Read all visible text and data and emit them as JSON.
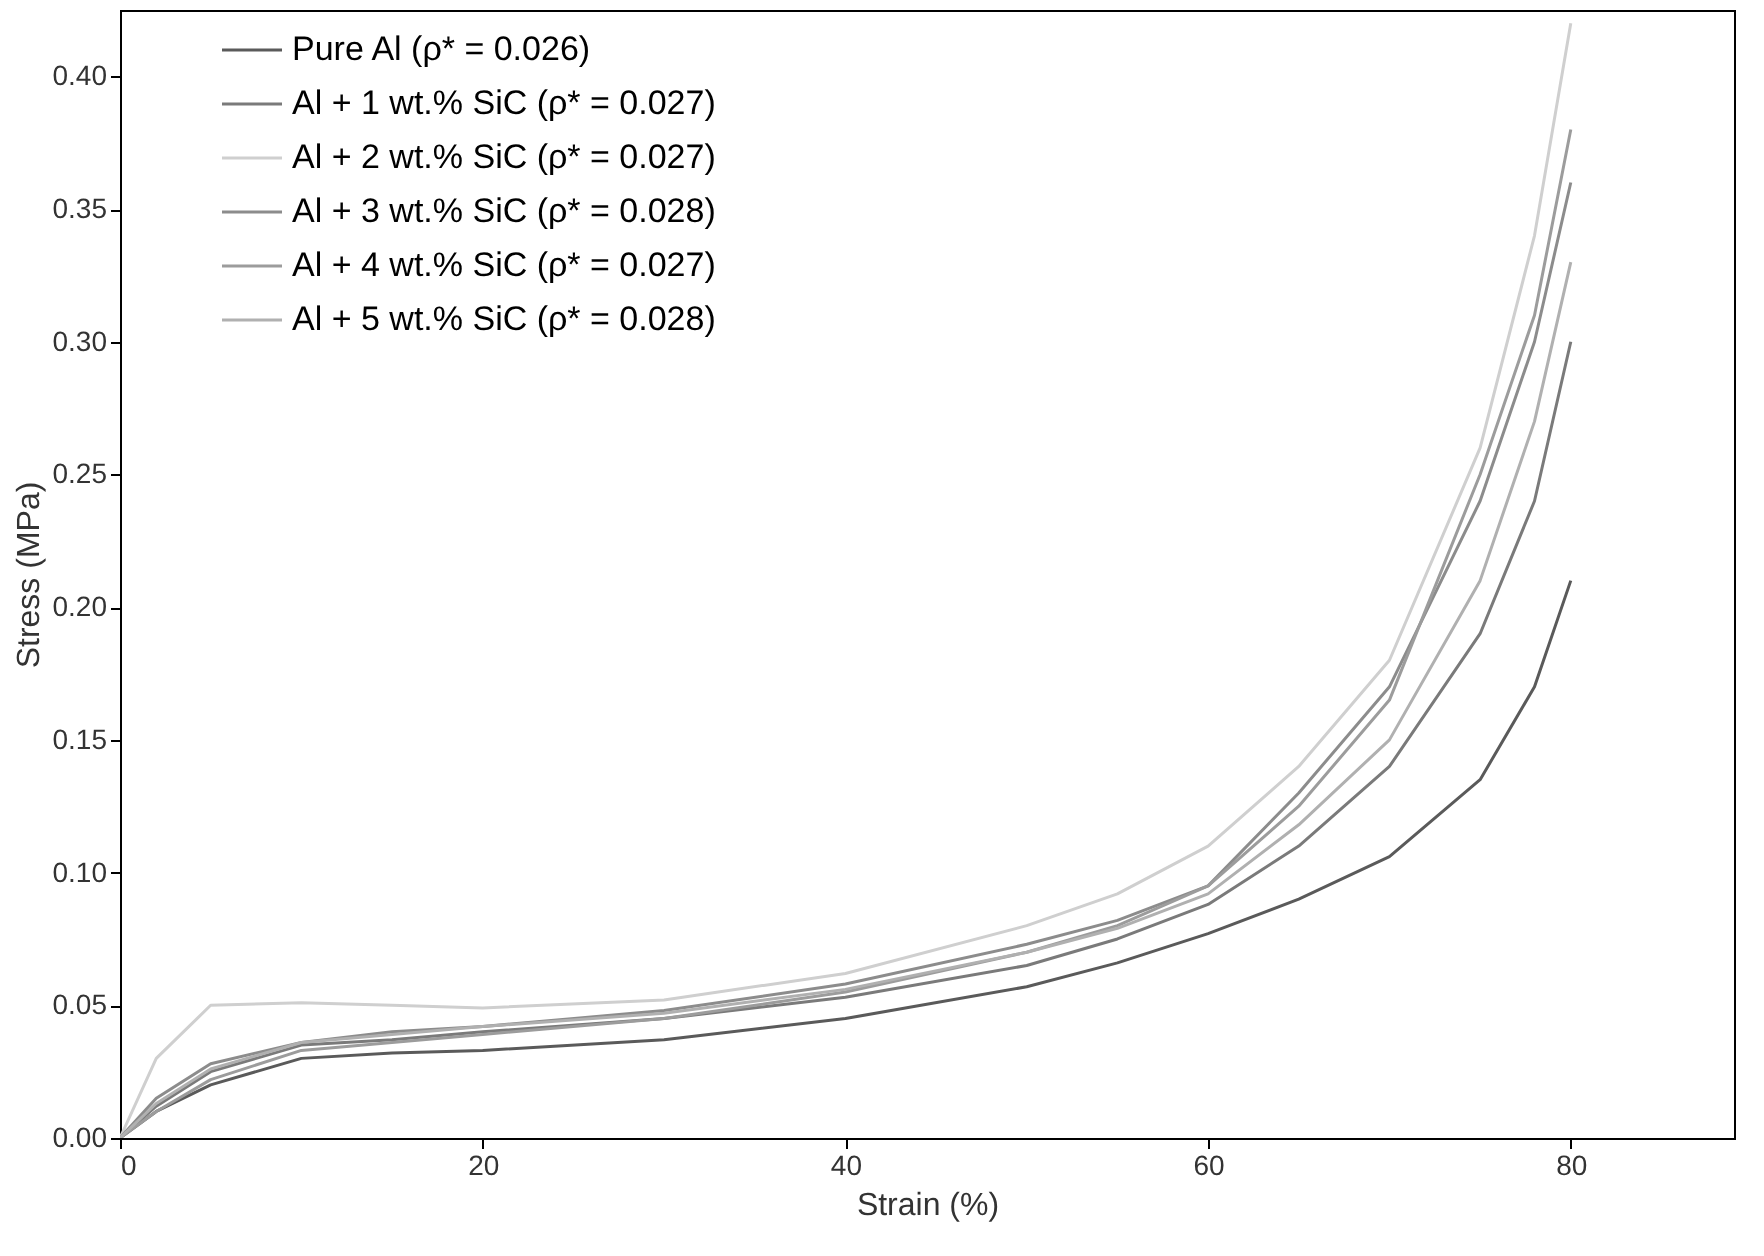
{
  "chart_data": {
    "type": "line",
    "xlabel": "Strain (%)",
    "ylabel": "Stress (MPa)",
    "xlim": [
      0,
      89
    ],
    "ylim": [
      0,
      0.425
    ],
    "xticks": [
      0,
      20,
      40,
      60,
      80
    ],
    "yticks": [
      {
        "value": 0,
        "label": "0.00"
      },
      {
        "value": 0.05,
        "label": "0.05"
      },
      {
        "value": 0.1,
        "label": "0.10"
      },
      {
        "value": 0.15,
        "label": "0.15"
      },
      {
        "value": 0.2,
        "label": "0.20"
      },
      {
        "value": 0.25,
        "label": "0.25"
      },
      {
        "value": 0.3,
        "label": "0.30"
      },
      {
        "value": 0.35,
        "label": "0.35"
      },
      {
        "value": 0.4,
        "label": "0.40"
      }
    ],
    "x": [
      0,
      2,
      5,
      10,
      15,
      20,
      30,
      40,
      50,
      55,
      60,
      65,
      70,
      75,
      78,
      80
    ],
    "series": [
      {
        "name": "Pure Al (ρ* =  0.026)",
        "color": "#5a5a5a",
        "values": [
          0,
          0.01,
          0.02,
          0.03,
          0.032,
          0.033,
          0.037,
          0.045,
          0.057,
          0.066,
          0.077,
          0.09,
          0.106,
          0.135,
          0.17,
          0.21
        ]
      },
      {
        "name": "Al + 1 wt.% SiC (ρ* =  0.027)",
        "color": "#7a7a7a",
        "values": [
          0,
          0.012,
          0.025,
          0.035,
          0.037,
          0.04,
          0.045,
          0.053,
          0.065,
          0.075,
          0.088,
          0.11,
          0.14,
          0.19,
          0.24,
          0.3
        ]
      },
      {
        "name": "Al + 2 wt.% SiC (ρ* =  0.027)",
        "color": "#cfcfcf",
        "values": [
          0,
          0.03,
          0.05,
          0.051,
          0.05,
          0.049,
          0.052,
          0.062,
          0.08,
          0.092,
          0.11,
          0.14,
          0.18,
          0.26,
          0.34,
          0.42
        ]
      },
      {
        "name": "Al + 3 wt.% SiC (ρ* =  0.028)",
        "color": "#8c8c8c",
        "values": [
          0,
          0.015,
          0.028,
          0.036,
          0.04,
          0.042,
          0.048,
          0.058,
          0.073,
          0.082,
          0.095,
          0.13,
          0.17,
          0.24,
          0.3,
          0.36
        ]
      },
      {
        "name": "Al + 4 wt.% SiC (ρ* =  0.027)",
        "color": "#9c9c9c",
        "values": [
          0,
          0.01,
          0.022,
          0.033,
          0.036,
          0.039,
          0.045,
          0.055,
          0.07,
          0.08,
          0.095,
          0.125,
          0.165,
          0.25,
          0.31,
          0.38
        ]
      },
      {
        "name": "Al + 5 wt.% SiC (ρ* =  0.028)",
        "color": "#b0b0b0",
        "values": [
          0,
          0.013,
          0.026,
          0.036,
          0.039,
          0.042,
          0.047,
          0.056,
          0.07,
          0.079,
          0.092,
          0.118,
          0.15,
          0.21,
          0.27,
          0.33
        ]
      }
    ],
    "legend": "top left",
    "grid": false,
    "line_style": "solid",
    "marker": "none"
  }
}
